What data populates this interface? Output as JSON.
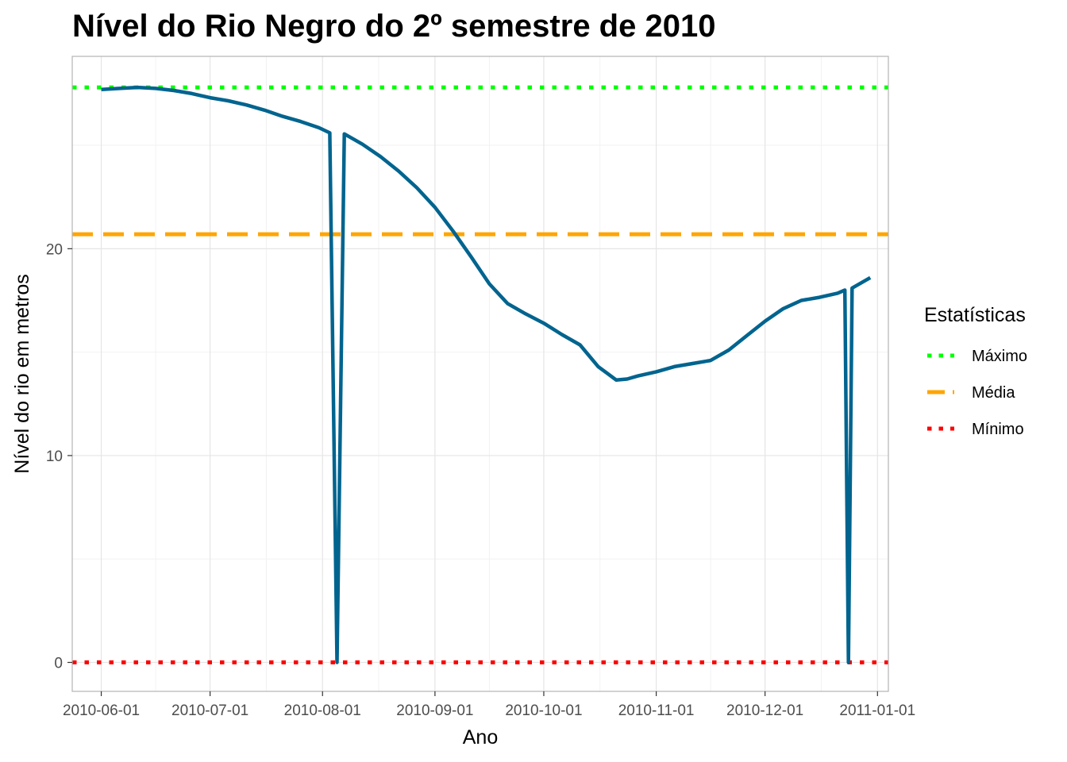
{
  "chart_data": {
    "type": "line",
    "title": "Nível do Rio Negro do 2º semestre de 2010",
    "xlabel": "Ano",
    "ylabel": "Nível do rio em metros",
    "xlim": [
      "2010-05-24",
      "2011-01-04"
    ],
    "ylim": [
      -1.4,
      29.3
    ],
    "x_ticks": [
      "2010-06-01",
      "2010-07-01",
      "2010-08-01",
      "2010-09-01",
      "2010-10-01",
      "2010-11-01",
      "2010-12-01",
      "2011-01-01"
    ],
    "y_ticks": [
      0,
      10,
      20
    ],
    "grid": true,
    "colors": {
      "series": "#00648f",
      "maximo": "#00ff00",
      "media": "#ffa500",
      "minimo": "#ff0000",
      "panel_border": "#b3b3b3",
      "grid_major": "#e5e5e5",
      "grid_minor": "#f2f2f2"
    },
    "series": [
      {
        "x": [
          "2010-06-01",
          "2010-06-06",
          "2010-06-11",
          "2010-06-16",
          "2010-06-21",
          "2010-06-26",
          "2010-07-01",
          "2010-07-06",
          "2010-07-11",
          "2010-07-16",
          "2010-07-21",
          "2010-07-26",
          "2010-07-31",
          "2010-08-03",
          "2010-08-05",
          "2010-08-07",
          "2010-08-12",
          "2010-08-17",
          "2010-08-22",
          "2010-08-27",
          "2010-09-01",
          "2010-09-06",
          "2010-09-11",
          "2010-09-16",
          "2010-09-21",
          "2010-09-26",
          "2010-10-01",
          "2010-10-06",
          "2010-10-11",
          "2010-10-16",
          "2010-10-21",
          "2010-10-24",
          "2010-10-27",
          "2010-11-01",
          "2010-11-06",
          "2010-11-11",
          "2010-11-16",
          "2010-11-21",
          "2010-11-26",
          "2010-12-01",
          "2010-12-06",
          "2010-12-11",
          "2010-12-16",
          "2010-12-21",
          "2010-12-23",
          "2010-12-24",
          "2010-12-25",
          "2010-12-30"
        ],
        "values": [
          27.7,
          27.75,
          27.8,
          27.75,
          27.65,
          27.5,
          27.3,
          27.15,
          26.95,
          26.7,
          26.4,
          26.15,
          25.85,
          25.6,
          0,
          25.55,
          25.05,
          24.45,
          23.75,
          22.95,
          22.0,
          20.85,
          19.6,
          18.3,
          17.35,
          16.85,
          16.4,
          15.85,
          15.35,
          14.3,
          13.65,
          13.7,
          13.85,
          14.05,
          14.3,
          14.45,
          14.6,
          15.1,
          15.8,
          16.5,
          17.1,
          17.5,
          17.65,
          17.85,
          18.0,
          0,
          18.1,
          18.6
        ]
      }
    ],
    "hlines": [
      {
        "name": "Máximo",
        "value": 27.8,
        "style": "dotted"
      },
      {
        "name": "Média",
        "value": 20.7,
        "style": "dashed"
      },
      {
        "name": "Mínimo",
        "value": 0,
        "style": "dotted"
      }
    ],
    "legend": {
      "title": "Estatísticas",
      "position": "right",
      "items": [
        "Máximo",
        "Média",
        "Mínimo"
      ]
    }
  }
}
